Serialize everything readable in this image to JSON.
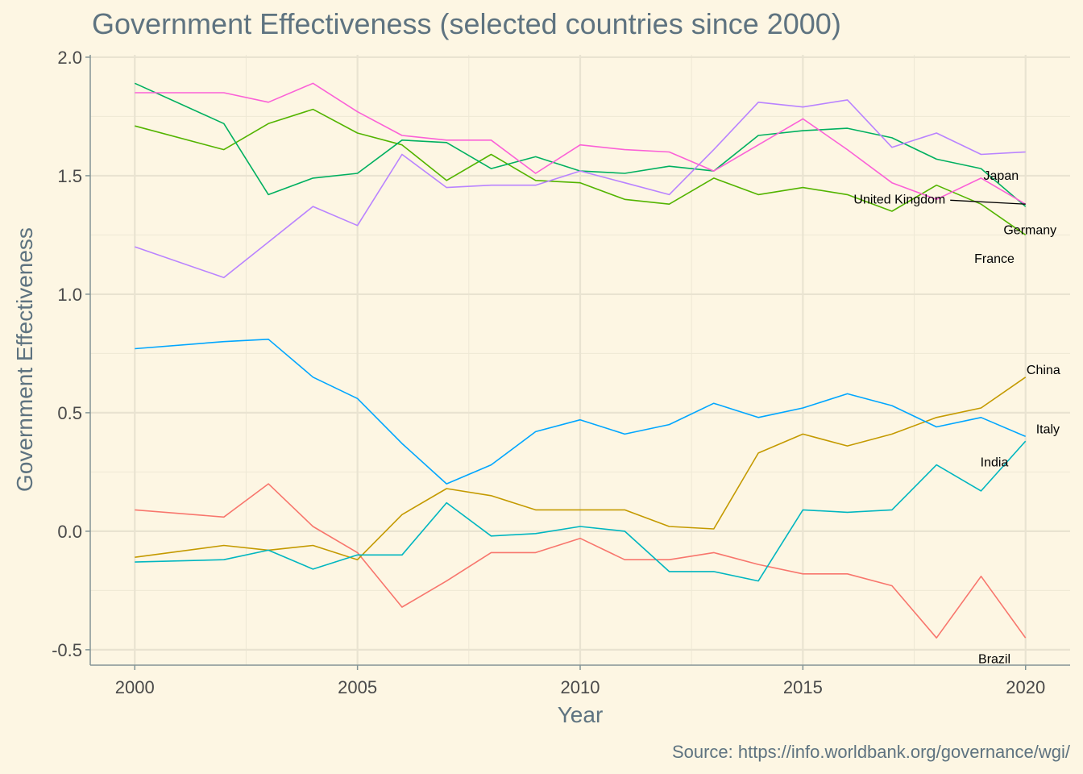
{
  "chart_data": {
    "type": "line",
    "title": "Government Effectiveness (selected countries since 2000)",
    "xlabel": "Year",
    "ylabel": "Government Effectiveness",
    "caption": "Source: https://info.worldbank.org/governance/wgi/",
    "xlim": [
      1999,
      2021
    ],
    "ylim": [
      -0.565,
      2.01
    ],
    "x_ticks": [
      2000,
      2005,
      2010,
      2015,
      2020
    ],
    "y_ticks": [
      -0.5,
      0.0,
      0.5,
      1.0,
      1.5,
      2.0
    ],
    "y_tick_labels": [
      "-0.5",
      "0.0",
      "0.5",
      "1.0",
      "1.5",
      "2.0"
    ],
    "grid": true,
    "legend": "none (direct labels at series ends)",
    "years": [
      2000,
      2002,
      2003,
      2004,
      2005,
      2006,
      2007,
      2008,
      2009,
      2010,
      2011,
      2012,
      2013,
      2014,
      2015,
      2016,
      2017,
      2018,
      2019,
      2020
    ],
    "series": [
      {
        "name": "Brazil",
        "color": "#F8766D",
        "values": [
          0.09,
          0.06,
          0.2,
          0.02,
          -0.09,
          -0.32,
          -0.21,
          -0.09,
          -0.09,
          -0.03,
          -0.12,
          -0.12,
          -0.09,
          -0.14,
          -0.18,
          -0.18,
          -0.23,
          -0.45,
          -0.19,
          -0.45
        ]
      },
      {
        "name": "China",
        "color": "#C49A00",
        "values": [
          -0.11,
          -0.06,
          -0.08,
          -0.06,
          -0.12,
          0.07,
          0.18,
          0.15,
          0.09,
          0.09,
          0.09,
          0.02,
          0.01,
          0.33,
          0.41,
          0.36,
          0.41,
          0.48,
          0.52,
          0.65
        ]
      },
      {
        "name": "France",
        "color": "#53B400",
        "values": [
          1.71,
          1.61,
          1.72,
          1.78,
          1.68,
          1.63,
          1.48,
          1.59,
          1.48,
          1.47,
          1.4,
          1.38,
          1.49,
          1.42,
          1.45,
          1.42,
          1.35,
          1.46,
          1.38,
          1.25
        ]
      },
      {
        "name": "Germany",
        "color": "#00B060",
        "values": [
          1.89,
          1.72,
          1.42,
          1.49,
          1.51,
          1.65,
          1.64,
          1.53,
          1.58,
          1.52,
          1.51,
          1.54,
          1.52,
          1.67,
          1.69,
          1.7,
          1.66,
          1.57,
          1.53,
          1.37
        ]
      },
      {
        "name": "India",
        "color": "#00B6C0",
        "values": [
          -0.13,
          -0.12,
          -0.08,
          -0.16,
          -0.1,
          -0.1,
          0.12,
          -0.02,
          -0.01,
          0.02,
          0.0,
          -0.17,
          -0.17,
          -0.21,
          0.09,
          0.08,
          0.09,
          0.28,
          0.17,
          0.38
        ]
      },
      {
        "name": "Italy",
        "color": "#00A6FF",
        "values": [
          0.77,
          0.8,
          0.81,
          0.65,
          0.56,
          0.37,
          0.2,
          0.28,
          0.42,
          0.47,
          0.41,
          0.45,
          0.54,
          0.48,
          0.52,
          0.58,
          0.53,
          0.44,
          0.48,
          0.4
        ]
      },
      {
        "name": "Japan",
        "color": "#B983FF",
        "values": [
          1.2,
          1.07,
          1.22,
          1.37,
          1.29,
          1.59,
          1.45,
          1.46,
          1.46,
          1.52,
          1.47,
          1.42,
          1.61,
          1.81,
          1.79,
          1.82,
          1.62,
          1.68,
          1.59,
          1.6
        ]
      },
      {
        "name": "United Kingdom",
        "color": "#FB61D7",
        "values": [
          1.85,
          1.85,
          1.81,
          1.89,
          1.77,
          1.67,
          1.65,
          1.65,
          1.51,
          1.63,
          1.61,
          1.6,
          1.52,
          1.63,
          1.74,
          1.61,
          1.47,
          1.4,
          1.49,
          1.38
        ]
      }
    ],
    "end_labels": [
      "Japan",
      "United Kingdom",
      "Germany",
      "France",
      "China",
      "Italy",
      "India",
      "Brazil"
    ]
  }
}
